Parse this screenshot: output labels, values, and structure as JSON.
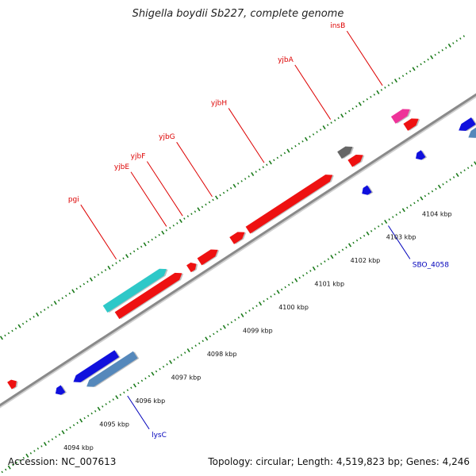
{
  "title": "Shigella boydii Sb227, complete genome",
  "footer": {
    "accession": "Accession: NC_007613",
    "summary": "Topology: circular; Length: 4,519,823 bp; Genes: 4,246"
  },
  "colors": {
    "backbone": "#8a8a8a",
    "tick": "#1a7a1a",
    "forward_cds": "#ee1111",
    "reverse_cds": "#1010dd",
    "rna": "#2ec8c8",
    "pseudo": "#666666",
    "mobile": "#ee3399",
    "reverse_alt": "#5588bb",
    "label_forward": "#dd0000",
    "label_reverse": "#0000bb"
  },
  "chart_data": {
    "type": "genome-map",
    "topology": "circular",
    "length_bp": 4519823,
    "gene_count": 4246,
    "scale_labels": [
      {
        "kbp": 4094,
        "text": "4094 kbp"
      },
      {
        "kbp": 4095,
        "text": "4095 kbp"
      },
      {
        "kbp": 4096,
        "text": "4096 kbp"
      },
      {
        "kbp": 4097,
        "text": "4097 kbp"
      },
      {
        "kbp": 4098,
        "text": "4098 kbp"
      },
      {
        "kbp": 4099,
        "text": "4099 kbp"
      },
      {
        "kbp": 4100,
        "text": "4100 kbp"
      },
      {
        "kbp": 4101,
        "text": "4101 kbp"
      },
      {
        "kbp": 4102,
        "text": "4102 kbp"
      },
      {
        "kbp": 4103,
        "text": "4103 kbp"
      },
      {
        "kbp": 4104,
        "text": "4104 kbp"
      }
    ],
    "features": [
      {
        "strand": "+",
        "start_kbp": 4093.55,
        "end_kbp": 4093.65,
        "kind": "forward_cds",
        "label": ""
      },
      {
        "strand": "-",
        "start_kbp": 4094.35,
        "end_kbp": 4094.55,
        "kind": "reverse_cds",
        "label": ""
      },
      {
        "strand": "-",
        "start_kbp": 4094.85,
        "end_kbp": 4096.05,
        "kind": "reverse_cds",
        "label": ""
      },
      {
        "strand": "-",
        "start_kbp": 4095.05,
        "end_kbp": 4096.4,
        "kind": "reverse_alt",
        "label": "lysC"
      },
      {
        "strand": "+",
        "start_kbp": 4096.4,
        "end_kbp": 4098.1,
        "kind": "rna",
        "label": "pgi"
      },
      {
        "strand": "+",
        "start_kbp": 4096.55,
        "end_kbp": 4098.35,
        "kind": "forward_cds",
        "label": ""
      },
      {
        "strand": "+",
        "start_kbp": 4098.55,
        "end_kbp": 4098.75,
        "kind": "forward_cds",
        "label": "yjbE"
      },
      {
        "strand": "+",
        "start_kbp": 4098.85,
        "end_kbp": 4099.35,
        "kind": "forward_cds",
        "label": "yjbF"
      },
      {
        "strand": "+",
        "start_kbp": 4099.75,
        "end_kbp": 4100.1,
        "kind": "forward_cds",
        "label": "yjbG"
      },
      {
        "strand": "+",
        "start_kbp": 4100.2,
        "end_kbp": 4102.55,
        "kind": "forward_cds",
        "label": "yjbH"
      },
      {
        "strand": "-",
        "start_kbp": 4102.9,
        "end_kbp": 4103.1,
        "kind": "reverse_cds",
        "label": "SBO_4058"
      },
      {
        "strand": "+",
        "start_kbp": 4102.95,
        "end_kbp": 4103.3,
        "kind": "pseudo",
        "label": ""
      },
      {
        "strand": "+",
        "start_kbp": 4103.05,
        "end_kbp": 4103.4,
        "kind": "forward_cds",
        "label": "yjbA"
      },
      {
        "strand": "-",
        "start_kbp": 4104.4,
        "end_kbp": 4104.6,
        "kind": "reverse_cds",
        "label": ""
      },
      {
        "strand": "+",
        "start_kbp": 4104.45,
        "end_kbp": 4104.9,
        "kind": "mobile",
        "label": "insB"
      },
      {
        "strand": "+",
        "start_kbp": 4104.6,
        "end_kbp": 4104.95,
        "kind": "forward_cds",
        "label": ""
      },
      {
        "strand": "-",
        "start_kbp": 4105.6,
        "end_kbp": 4106.0,
        "kind": "reverse_cds",
        "label": ""
      },
      {
        "strand": "-",
        "start_kbp": 4105.7,
        "end_kbp": 4106.0,
        "kind": "reverse_alt",
        "label": ""
      }
    ]
  }
}
